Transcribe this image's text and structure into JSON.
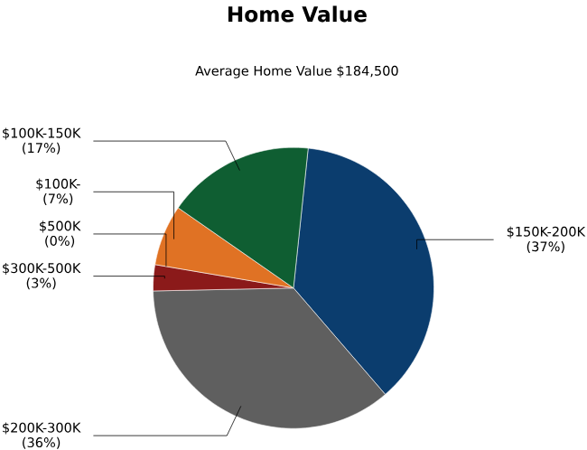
{
  "chart_data": {
    "type": "pie",
    "title": "Home Value",
    "subtitle": "Average Home Value  $184,500",
    "categories": [
      "$150K-200K",
      "$200K-300K",
      "$300K-500K",
      "$500K",
      "$100K-",
      "$100K-150K"
    ],
    "values": [
      37,
      36,
      3,
      0,
      7,
      17
    ],
    "colors": [
      "#0b3d6e",
      "#5f5f5f",
      "#8b1a1a",
      null,
      "#e07224",
      "#0f5e32"
    ],
    "value_labels": [
      "(37%)",
      "(36%)",
      "(3%)",
      "(0%)",
      "(7%)",
      "(17%)"
    ]
  }
}
